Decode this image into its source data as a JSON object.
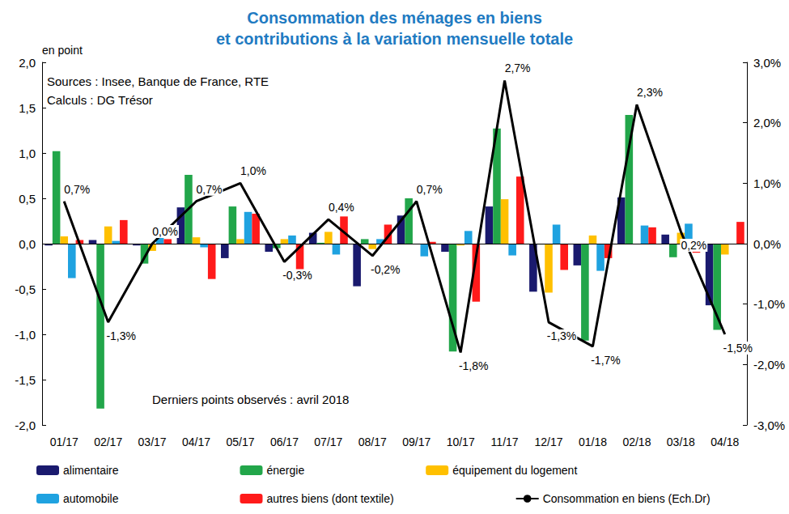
{
  "chart_data": {
    "type": "bar",
    "title": "Consommation des ménages en biens\net contributions à la variation mensuelle totale",
    "y_label": "en point",
    "annotations": [
      "Sources : Insee, Banque de France, RTE",
      "Calculs : DG Trésor",
      "Derniers points observés : avril 2018"
    ],
    "categories": [
      "01/17",
      "02/17",
      "03/17",
      "04/17",
      "05/17",
      "06/17",
      "07/17",
      "08/17",
      "09/17",
      "10/17",
      "11/17",
      "12/17",
      "01/18",
      "02/18",
      "03/18",
      "04/18"
    ],
    "series": [
      {
        "name": "alimentaire",
        "color": "#1a1a6e",
        "values": [
          -0.02,
          0.04,
          -0.02,
          0.4,
          -0.16,
          -0.09,
          0.12,
          -0.47,
          0.31,
          -0.09,
          0.41,
          -0.53,
          -0.24,
          0.51,
          0.1,
          -0.68
        ]
      },
      {
        "name": "énergie",
        "color": "#22a64a",
        "values": [
          1.02,
          -1.82,
          -0.22,
          0.76,
          0.41,
          -0.05,
          0.01,
          0.05,
          0.5,
          -1.19,
          1.27,
          -0.01,
          -1.07,
          1.42,
          -0.15,
          -0.95
        ]
      },
      {
        "name": "équipement du logement",
        "color": "#ffc000",
        "values": [
          0.08,
          0.19,
          -0.08,
          0.07,
          0.05,
          0.05,
          0.13,
          -0.06,
          0.0,
          -0.02,
          0.49,
          -0.54,
          0.09,
          0.0,
          0.12,
          -0.12
        ]
      },
      {
        "name": "automobile",
        "color": "#1fa2e0",
        "values": [
          -0.38,
          0.03,
          0.12,
          -0.04,
          0.35,
          0.09,
          -0.12,
          0.05,
          -0.14,
          0.14,
          -0.13,
          0.21,
          -0.3,
          0.2,
          0.22,
          0.0
        ]
      },
      {
        "name": "autres biens (dont textile)",
        "color": "#ff1a1a",
        "values": [
          0.04,
          0.26,
          0.05,
          -0.39,
          0.33,
          -0.34,
          0.3,
          0.21,
          0.02,
          -0.64,
          0.74,
          -0.29,
          -0.16,
          0.18,
          -0.1,
          0.24
        ]
      },
      {
        "name": "Consommation en biens (Ech.Dr)",
        "color": "#000000",
        "type": "line",
        "axis": "y2",
        "data_labels": true,
        "values": [
          0.7,
          -1.3,
          0.0,
          0.7,
          1.0,
          -0.3,
          0.4,
          -0.2,
          0.7,
          -1.8,
          2.7,
          -1.3,
          -1.7,
          2.3,
          0.2,
          -1.5
        ],
        "value_labels": [
          "0,7%",
          "-1,3%",
          "0,0%",
          "0,7%",
          "1,0%",
          "-0,3%",
          "0,4%",
          "-0,2%",
          "0,7%",
          "-1,8%",
          "2,7%",
          "-1,3%",
          "-1,7%",
          "2,3%",
          "0,2%",
          "-1,5%"
        ]
      }
    ],
    "ylim": [
      -2,
      2
    ],
    "yticks": [
      {
        "value": -2,
        "label": "-2,0"
      },
      {
        "value": -1.5,
        "label": "-1,5"
      },
      {
        "value": -1,
        "label": "-1,0"
      },
      {
        "value": -0.5,
        "label": "-0,5"
      },
      {
        "value": 0,
        "label": "0,0"
      },
      {
        "value": 0.5,
        "label": "0,5"
      },
      {
        "value": 1,
        "label": "1,0"
      },
      {
        "value": 1.5,
        "label": "1,5"
      },
      {
        "value": 2,
        "label": "2,0"
      }
    ],
    "y2lim": [
      -3,
      3
    ],
    "y2ticks": [
      {
        "value": -3,
        "label": "-3,0%"
      },
      {
        "value": -2,
        "label": "-2,0%"
      },
      {
        "value": -1,
        "label": "-1,0%"
      },
      {
        "value": 0,
        "label": "0,0%"
      },
      {
        "value": 1,
        "label": "1,0%"
      },
      {
        "value": 2,
        "label": "2,0%"
      },
      {
        "value": 3,
        "label": "3,0%"
      }
    ],
    "grid": false,
    "legend": "bottom"
  }
}
